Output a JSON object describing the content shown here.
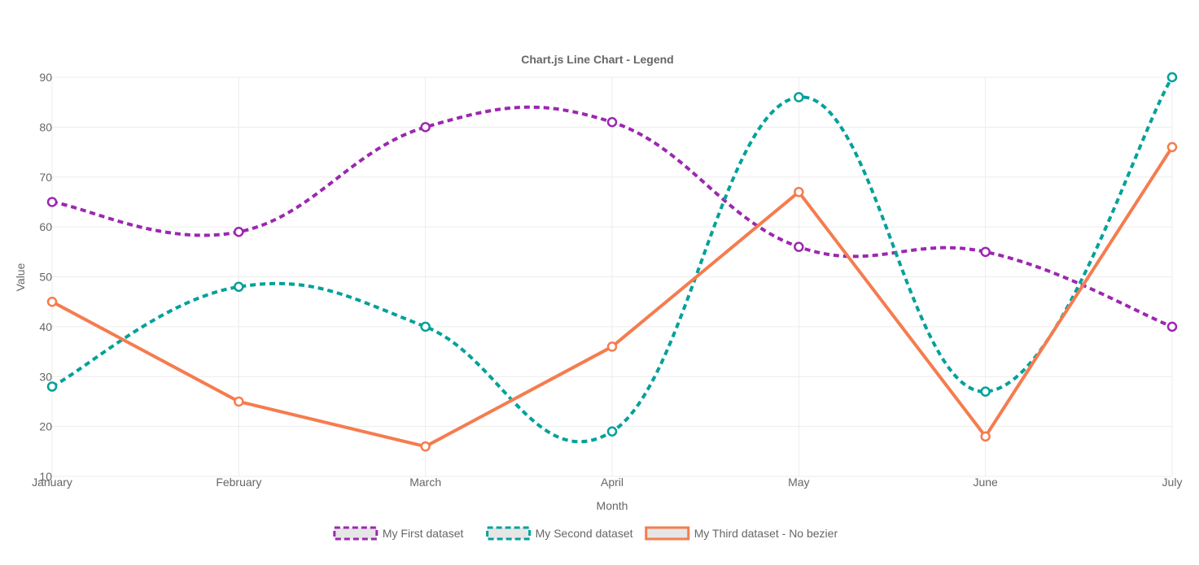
{
  "chart_data": {
    "type": "line",
    "title": "Chart.js Line Chart - Legend",
    "xlabel": "Month",
    "ylabel": "Value",
    "categories": [
      "January",
      "February",
      "March",
      "April",
      "May",
      "June",
      "July"
    ],
    "ylim": [
      10,
      90
    ],
    "yticks": [
      10,
      20,
      30,
      40,
      50,
      60,
      70,
      80,
      90
    ],
    "grid": true,
    "legend_position": "bottom",
    "series": [
      {
        "name": "My First dataset",
        "values": [
          65,
          59,
          80,
          81,
          56,
          55,
          40
        ],
        "color": "#9c27b0",
        "dashed": true,
        "smooth": true
      },
      {
        "name": "My Second dataset",
        "values": [
          28,
          48,
          40,
          19,
          86,
          27,
          90
        ],
        "color": "#00a19a",
        "dashed": true,
        "smooth": true
      },
      {
        "name": "My Third dataset - No bezier",
        "values": [
          45,
          25,
          16,
          36,
          67,
          18,
          76
        ],
        "color": "#f57c4e",
        "dashed": false,
        "smooth": false
      }
    ]
  }
}
